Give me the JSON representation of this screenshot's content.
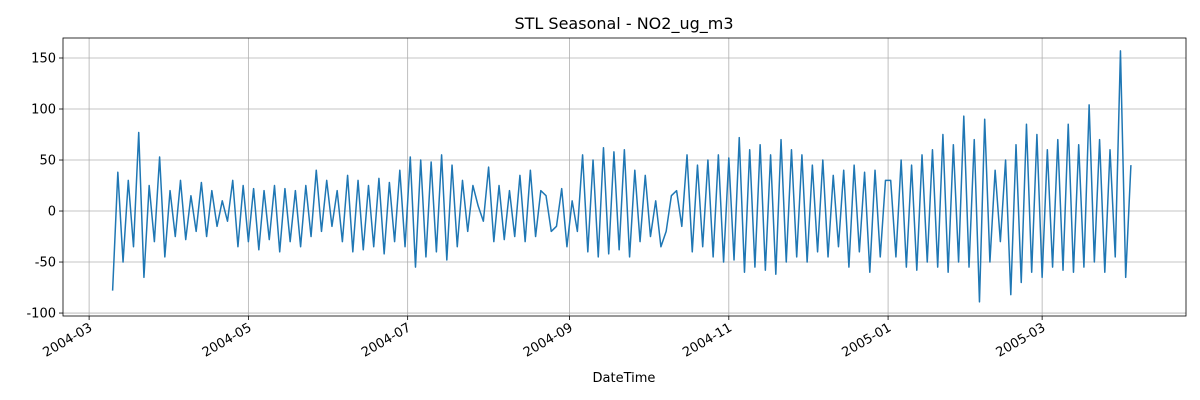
{
  "chart_data": {
    "type": "line",
    "title": "STL Seasonal - NO2_ug_m3",
    "x_label": "DateTime",
    "color": "#1f77b4",
    "grid": true,
    "xlim": [
      12468.0,
      12898.1
    ],
    "ylim": [
      -102.9,
      169.6
    ],
    "xticks": [
      {
        "value": 12478,
        "label": "2004-03"
      },
      {
        "value": 12539,
        "label": "2004-05"
      },
      {
        "value": 12600,
        "label": "2004-07"
      },
      {
        "value": 12662,
        "label": "2004-09"
      },
      {
        "value": 12723,
        "label": "2004-11"
      },
      {
        "value": 12784,
        "label": "2005-01"
      },
      {
        "value": 12843,
        "label": "2005-03"
      }
    ],
    "yticks": [
      -100,
      -50,
      0,
      50,
      100,
      150
    ],
    "x": [
      12487,
      12489,
      12491,
      12493,
      12495,
      12497,
      12499,
      12501,
      12503,
      12505,
      12507,
      12509,
      12511,
      12513,
      12515,
      12517,
      12519,
      12521,
      12523,
      12525,
      12527,
      12529,
      12531,
      12533,
      12535,
      12537,
      12539,
      12541,
      12543,
      12545,
      12547,
      12549,
      12551,
      12553,
      12555,
      12557,
      12559,
      12561,
      12563,
      12565,
      12567,
      12569,
      12571,
      12573,
      12575,
      12577,
      12579,
      12581,
      12583,
      12585,
      12587,
      12589,
      12591,
      12593,
      12595,
      12597,
      12599,
      12601,
      12603,
      12605,
      12607,
      12609,
      12611,
      12613,
      12615,
      12617,
      12619,
      12621,
      12623,
      12625,
      12627,
      12629,
      12631,
      12633,
      12635,
      12637,
      12639,
      12641,
      12643,
      12645,
      12647,
      12649,
      12651,
      12653,
      12655,
      12657,
      12659,
      12661,
      12663,
      12665,
      12667,
      12669,
      12671,
      12673,
      12675,
      12677,
      12679,
      12681,
      12683,
      12685,
      12687,
      12689,
      12691,
      12693,
      12695,
      12697,
      12699,
      12701,
      12703,
      12705,
      12707,
      12709,
      12711,
      12713,
      12715,
      12717,
      12719,
      12721,
      12723,
      12725,
      12727,
      12729,
      12731,
      12733,
      12735,
      12737,
      12739,
      12741,
      12743,
      12745,
      12747,
      12749,
      12751,
      12753,
      12755,
      12757,
      12759,
      12761,
      12763,
      12765,
      12767,
      12769,
      12771,
      12773,
      12775,
      12777,
      12779,
      12781,
      12783,
      12785,
      12787,
      12789,
      12791,
      12793,
      12795,
      12797,
      12799,
      12801,
      12803,
      12805,
      12807,
      12809,
      12811,
      12813,
      12815,
      12817,
      12819,
      12821,
      12823,
      12825,
      12827,
      12829,
      12831,
      12833,
      12835,
      12837,
      12839,
      12841,
      12843,
      12845,
      12847,
      12849,
      12851,
      12853,
      12855,
      12857,
      12859,
      12861,
      12863,
      12865,
      12867,
      12869,
      12871,
      12873,
      12875,
      12877
    ],
    "values": [
      -78,
      38,
      -50,
      30,
      -35,
      77,
      -65,
      25,
      -30,
      53,
      -45,
      20,
      -25,
      30,
      -28,
      15,
      -20,
      28,
      -25,
      20,
      -15,
      10,
      -10,
      30,
      -35,
      25,
      -30,
      22,
      -38,
      20,
      -28,
      25,
      -40,
      22,
      -30,
      20,
      -35,
      25,
      -25,
      40,
      -20,
      30,
      -15,
      20,
      -30,
      35,
      -40,
      30,
      -38,
      25,
      -35,
      32,
      -42,
      28,
      -30,
      40,
      -35,
      53,
      -55,
      50,
      -45,
      48,
      -40,
      55,
      -48,
      45,
      -35,
      30,
      -20,
      25,
      5,
      -10,
      43,
      -30,
      25,
      -28,
      20,
      -25,
      35,
      -30,
      40,
      -25,
      20,
      15,
      -20,
      -15,
      22,
      -35,
      10,
      -20,
      55,
      -40,
      50,
      -45,
      62,
      -42,
      58,
      -38,
      60,
      -45,
      40,
      -30,
      35,
      -25,
      10,
      -35,
      -20,
      15,
      20,
      -15,
      55,
      -40,
      45,
      -35,
      50,
      -45,
      55,
      -50,
      52,
      -48,
      72,
      -60,
      60,
      -55,
      65,
      -58,
      55,
      -62,
      70,
      -50,
      60,
      -45,
      55,
      -50,
      45,
      -40,
      50,
      -45,
      35,
      -35,
      40,
      -55,
      45,
      -40,
      38,
      -60,
      40,
      -45,
      30,
      30,
      -45,
      50,
      -55,
      45,
      -58,
      55,
      -50,
      60,
      -55,
      75,
      -60,
      65,
      -50,
      93,
      -55,
      70,
      -89,
      90,
      -50,
      40,
      -30,
      50,
      -82,
      65,
      -70,
      85,
      -60,
      75,
      -65,
      60,
      -55,
      70,
      -58,
      85,
      -60,
      65,
      -55,
      104,
      -50,
      70,
      -60,
      60,
      -45,
      157,
      -65,
      45
    ]
  }
}
